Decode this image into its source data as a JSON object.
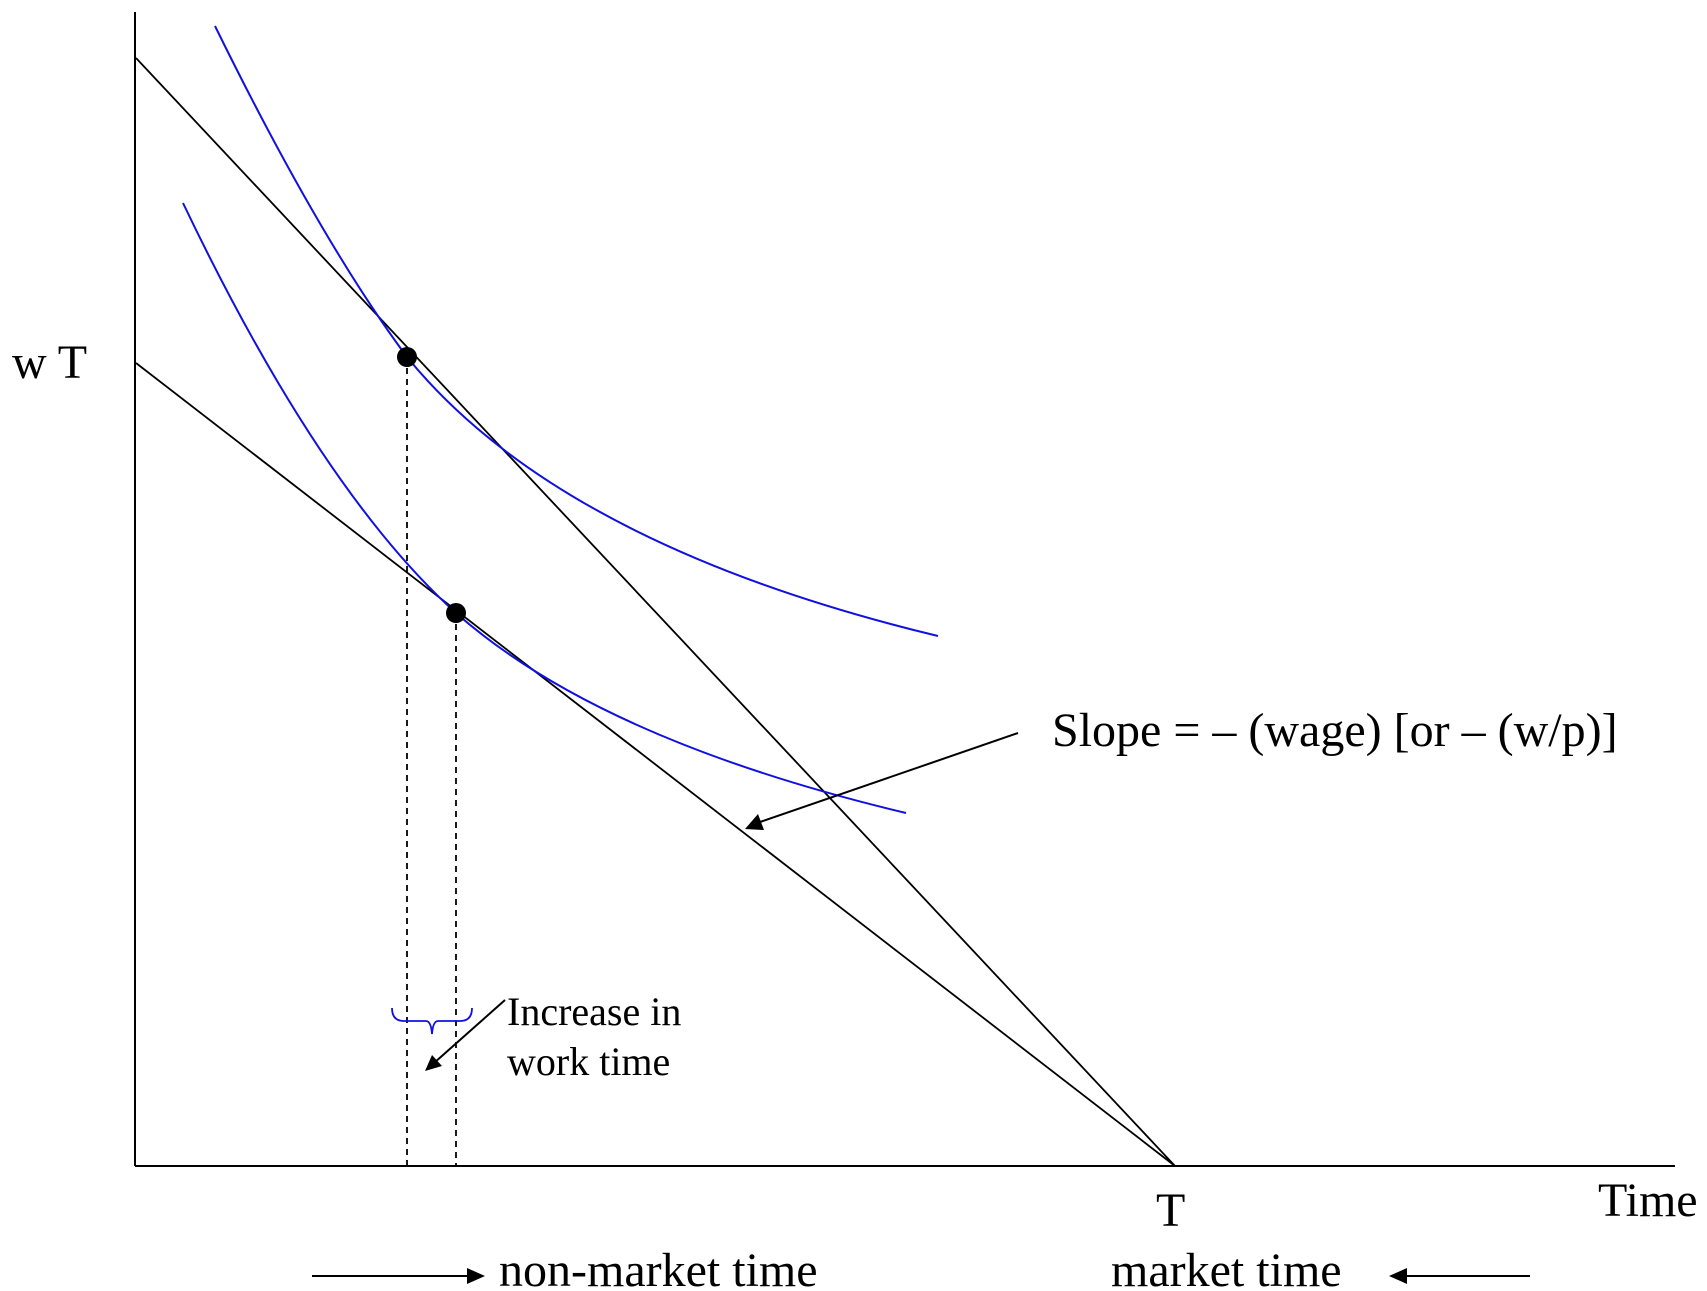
{
  "diagram": {
    "y_axis_label": "w T",
    "x_axis_end_label": "T",
    "x_axis_label": "Time",
    "slope_annotation": "Slope = – (wage) [or – (w/p)]",
    "increase_annotation_line1": "Increase in",
    "increase_annotation_line2": "work time",
    "non_market_label": "non-market time",
    "market_label": "market time",
    "colors": {
      "axes_and_budget_lines": "#000000",
      "indifference_curves": "#1010e0"
    }
  }
}
